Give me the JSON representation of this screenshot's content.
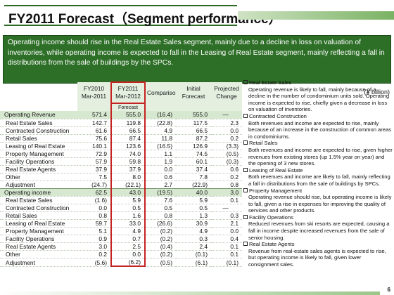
{
  "title": "FY2011 Forecast（Segment performance）",
  "banner": "Operating income should rise in the Real Estate Sales segment, mainly due to a decline in loss on valuation of inventories, while operating income is expected to fall in the Leasing of Real Estate segment, mainly reflecting a fall in distributions from the sale of buildings by the SPCs.",
  "unit": "(¥ billion)",
  "table": {
    "headers": {
      "fy2010": "FY2010",
      "fy2010_sub": "Mar-2011",
      "fy2011": "FY2011",
      "fy2011_sub": "Mar-2012",
      "fy2011_sub2": "Forecast",
      "comparison": "Comparison",
      "initial": "Initial",
      "initial_sub": "Forecast",
      "projected": "Projected",
      "projected_sub": "Change"
    },
    "rows": [
      {
        "label": "Operating Revenue",
        "v": [
          "571.4",
          "555.0",
          "(16.4)",
          "555.0",
          "—"
        ],
        "main": true
      },
      {
        "label": "Real Estate Sales",
        "v": [
          "142.7",
          "119.8",
          "(22.8)",
          "117.5",
          "2.3"
        ]
      },
      {
        "label": "Contracted Construction",
        "v": [
          "61.6",
          "66.5",
          "4.9",
          "66.5",
          "0.0"
        ]
      },
      {
        "label": "Retail Sales",
        "v": [
          "75.6",
          "87.4",
          "11.8",
          "87.2",
          "0.2"
        ]
      },
      {
        "label": "Leasing of Real Estate",
        "v": [
          "140.1",
          "123.6",
          "(16.5)",
          "126.9",
          "(3.3)"
        ]
      },
      {
        "label": "Property Management",
        "v": [
          "72.9",
          "74.0",
          "1.1",
          "74.5",
          "(0.5)"
        ]
      },
      {
        "label": "Facility Operations",
        "v": [
          "57.9",
          "59.8",
          "1.9",
          "60.1",
          "(0.3)"
        ]
      },
      {
        "label": "Real Estate Agents",
        "v": [
          "37.9",
          "37.9",
          "0.0",
          "37.4",
          "0.6"
        ]
      },
      {
        "label": "Other",
        "v": [
          "7.5",
          "8.0",
          "0.6",
          "7.8",
          "0.2"
        ]
      },
      {
        "label": "Adjustment",
        "v": [
          "(24.7)",
          "(22.1)",
          "2.7",
          "(22.9)",
          "0.8"
        ],
        "sep": true
      },
      {
        "label": "Operating income",
        "v": [
          "62.5",
          "43.0",
          "(19.5)",
          "40.0",
          "3.0"
        ],
        "main": true
      },
      {
        "label": "Real Estate Sales",
        "v": [
          "(1.6)",
          "5.9",
          "7.6",
          "5.9",
          "0.1"
        ]
      },
      {
        "label": "Contracted Construction",
        "v": [
          "0.0",
          "0.5",
          "0.5",
          "0.5",
          "—"
        ]
      },
      {
        "label": "Retail Sales",
        "v": [
          "0.8",
          "1.6",
          "0.8",
          "1.3",
          "0.3"
        ]
      },
      {
        "label": "Leasing of Real Estate",
        "v": [
          "59.7",
          "33.0",
          "(26.6)",
          "30.9",
          "2.1"
        ]
      },
      {
        "label": "Property Management",
        "v": [
          "5.1",
          "4.9",
          "(0.2)",
          "4.9",
          "0.0"
        ]
      },
      {
        "label": "Facility Operations",
        "v": [
          "0.9",
          "0.7",
          "(0.2)",
          "0.3",
          "0.4"
        ]
      },
      {
        "label": "Real Estate Agents",
        "v": [
          "3.0",
          "2.5",
          "(0.4)",
          "2.4",
          "0.1"
        ]
      },
      {
        "label": "Other",
        "v": [
          "0.2",
          "0.0",
          "(0.2)",
          "(0.1)",
          "0.1"
        ]
      },
      {
        "label": "Adjustment",
        "v": [
          "(5.6)",
          "(6.2)",
          "(0.5)",
          "(6.1)",
          "(0.1)"
        ]
      }
    ]
  },
  "notes": [
    {
      "head": "Real Estate Sales",
      "body": "Operating revenue is likely to fall, mainly because of a decline in the number of condominium units sold. Operating income is expected to rise, chiefly given a decrease in loss on valuation of inventories."
    },
    {
      "head": "Contracted Construction",
      "body": "Both revenues and income are expected to rise, mainly because of an increase in the construction of common areas in condominiums."
    },
    {
      "head": "Retail Sales",
      "body": "Both revenues and income are expected to rise, given higher revenues from existing stores (up 1.5% year on year) and the opening of 3 new stores."
    },
    {
      "head": "Leasing of Real Estate",
      "body": "Both revenues and income are likely to fall, mainly reflecting a fall in distributions from the sale of buildings by SPCs."
    },
    {
      "head": "Property Management",
      "body": "Operating revenue should rise, but operating income is likely to fall, given a rise in expenses for improving the quality of services and other products."
    },
    {
      "head": "Facility Operations",
      "body": "Reduced revenues from ski resorts are expected, causing a fall in income despite increased revenues from the sale of senior housing."
    },
    {
      "head": "Real Estate Agents",
      "body": "Revenue from real-estate sales agents is expected to rise, but operating income is likely to fall, given lower consignment sales."
    }
  ],
  "page_number": "6"
}
